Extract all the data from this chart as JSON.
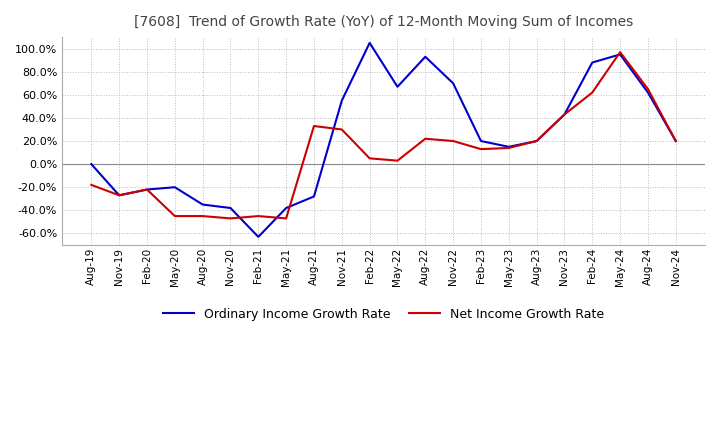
{
  "title": "[7608]  Trend of Growth Rate (YoY) of 12-Month Moving Sum of Incomes",
  "ylim": [
    -70,
    110
  ],
  "yticks": [
    -60,
    -40,
    -20,
    0,
    20,
    40,
    60,
    80,
    100
  ],
  "background_color": "#ffffff",
  "grid_color": "#bbbbbb",
  "ordinary_color": "#0000cc",
  "net_color": "#cc0000",
  "legend_labels": [
    "Ordinary Income Growth Rate",
    "Net Income Growth Rate"
  ],
  "x_labels": [
    "Aug-19",
    "Nov-19",
    "Feb-20",
    "May-20",
    "Aug-20",
    "Nov-20",
    "Feb-21",
    "May-21",
    "Aug-21",
    "Nov-21",
    "Feb-22",
    "May-22",
    "Aug-22",
    "Nov-22",
    "Feb-23",
    "May-23",
    "Aug-23",
    "Nov-23",
    "Feb-24",
    "May-24",
    "Aug-24",
    "Nov-24"
  ],
  "ordinary_income": [
    0,
    -27,
    -22,
    -20,
    -35,
    -38,
    -63,
    -38,
    -28,
    55,
    105,
    67,
    93,
    70,
    20,
    15,
    20,
    43,
    88,
    95,
    62,
    20
  ],
  "net_income": [
    -18,
    -27,
    -22,
    -45,
    -45,
    -47,
    -45,
    -47,
    33,
    30,
    5,
    3,
    22,
    20,
    13,
    14,
    20,
    43,
    62,
    97,
    65,
    20
  ]
}
